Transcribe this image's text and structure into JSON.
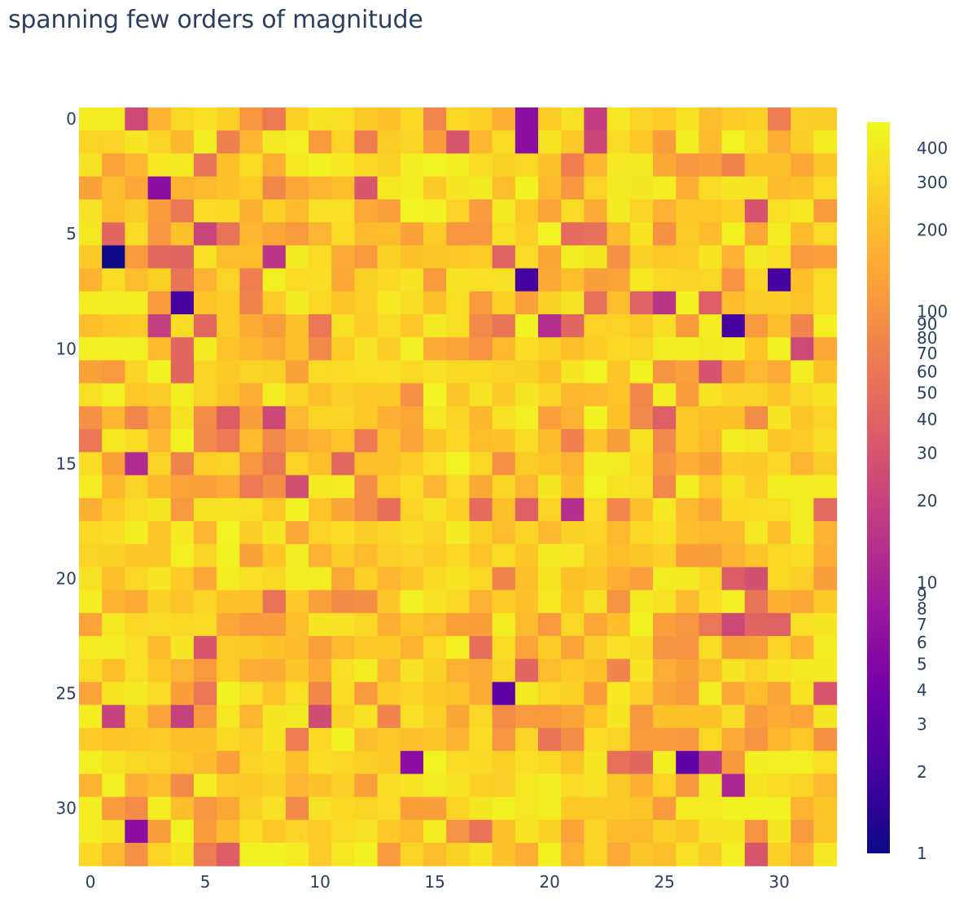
{
  "chart_data": {
    "type": "heatmap",
    "title": "spanning few orders of magnitude",
    "xlabel": "",
    "ylabel": "",
    "x_ticks": [
      "0",
      "5",
      "10",
      "15",
      "20",
      "25",
      "30"
    ],
    "y_ticks": [
      "0",
      "5",
      "10",
      "15",
      "20",
      "25",
      "30"
    ],
    "xlim": [
      -0.5,
      32.5
    ],
    "ylim": [
      32.5,
      -0.5
    ],
    "colorscale": "plasma",
    "colorscale_stops": [
      "#0d0887",
      "#46039f",
      "#7201a8",
      "#9c179e",
      "#bd3786",
      "#d8576b",
      "#ed7953",
      "#fb9f3a",
      "#fdca26",
      "#f0f921"
    ],
    "color_axis": {
      "scale": "log",
      "range": [
        1,
        500
      ],
      "tick_labels": [
        "1",
        "2",
        "3",
        "4",
        "5",
        "6",
        "7",
        "8",
        "9",
        "10",
        "20",
        "30",
        "40",
        "50",
        "60",
        "70",
        "80",
        "90",
        "100",
        "200",
        "300",
        "400"
      ]
    },
    "rows": 33,
    "cols": 33,
    "z": [
      [
        411,
        422,
        24,
        172,
        303,
        343,
        270,
        107,
        63,
        269,
        360,
        347,
        248,
        221,
        300,
        79,
        303,
        270,
        157,
        6,
        254,
        352,
        18,
        382,
        280,
        251,
        359,
        206,
        251,
        270,
        66,
        265,
        258
      ],
      [
        288,
        282,
        373,
        288,
        192,
        426,
        71,
        178,
        401,
        431,
        116,
        284,
        68,
        259,
        291,
        119,
        30,
        184,
        325,
        6,
        369,
        247,
        22,
        321,
        244,
        119,
        423,
        198,
        460,
        325,
        157,
        263,
        415
      ],
      [
        349,
        134,
        182,
        388,
        397,
        57,
        221,
        325,
        161,
        388,
        450,
        387,
        311,
        274,
        424,
        463,
        420,
        328,
        274,
        304,
        221,
        68,
        185,
        384,
        404,
        148,
        109,
        120,
        77,
        212,
        215,
        143,
        230
      ],
      [
        129,
        205,
        146,
        6,
        176,
        189,
        219,
        251,
        81,
        141,
        182,
        210,
        31,
        390,
        419,
        245,
        370,
        401,
        207,
        449,
        190,
        108,
        284,
        400,
        377,
        419,
        163,
        316,
        373,
        363,
        196,
        218,
        318
      ],
      [
        354,
        210,
        262,
        118,
        61,
        317,
        314,
        164,
        275,
        193,
        341,
        339,
        151,
        126,
        465,
        440,
        284,
        117,
        395,
        239,
        135,
        316,
        152,
        402,
        292,
        167,
        240,
        241,
        265,
        29,
        343,
        388,
        116
      ],
      [
        388,
        42,
        317,
        106,
        221,
        21,
        56,
        183,
        142,
        115,
        178,
        316,
        197,
        202,
        130,
        253,
        104,
        107,
        347,
        267,
        455,
        47,
        52,
        196,
        365,
        98,
        259,
        201,
        437,
        144,
        416,
        201,
        318
      ],
      [
        246,
        1,
        113,
        45,
        42,
        345,
        206,
        210,
        15,
        400,
        317,
        154,
        113,
        275,
        218,
        236,
        243,
        251,
        40,
        323,
        139,
        428,
        377,
        96,
        279,
        244,
        250,
        369,
        167,
        404,
        346,
        112,
        123
      ],
      [
        176,
        332,
        207,
        273,
        58,
        172,
        280,
        68,
        432,
        317,
        338,
        148,
        276,
        314,
        364,
        115,
        367,
        339,
        352,
        2,
        148,
        210,
        121,
        133,
        387,
        300,
        291,
        300,
        101,
        295,
        2,
        213,
        323
      ],
      [
        418,
        418,
        418,
        115,
        2,
        224,
        255,
        76,
        249,
        403,
        305,
        235,
        266,
        392,
        337,
        212,
        348,
        113,
        270,
        126,
        277,
        364,
        52,
        204,
        39,
        15,
        446,
        37,
        199,
        262,
        257,
        226,
        323
      ],
      [
        213,
        239,
        252,
        19,
        316,
        44,
        255,
        155,
        118,
        219,
        59,
        343,
        251,
        322,
        237,
        403,
        342,
        84,
        57,
        451,
        13,
        42,
        283,
        284,
        238,
        336,
        116,
        422,
        2,
        114,
        211,
        76,
        433
      ],
      [
        439,
        439,
        439,
        196,
        43,
        401,
        224,
        185,
        149,
        214,
        84,
        250,
        364,
        262,
        440,
        154,
        131,
        100,
        192,
        333,
        276,
        215,
        256,
        314,
        292,
        425,
        425,
        395,
        418,
        233,
        445,
        24,
        146
      ],
      [
        129,
        110,
        281,
        451,
        43,
        286,
        248,
        285,
        273,
        130,
        321,
        317,
        341,
        340,
        299,
        353,
        309,
        308,
        282,
        279,
        221,
        371,
        466,
        233,
        436,
        103,
        127,
        29,
        128,
        188,
        150,
        427,
        221
      ],
      [
        348,
        430,
        244,
        258,
        420,
        288,
        227,
        160,
        405,
        287,
        215,
        268,
        244,
        247,
        96,
        455,
        227,
        361,
        246,
        370,
        293,
        186,
        192,
        225,
        80,
        417,
        120,
        357,
        294,
        291,
        226,
        305,
        365
      ],
      [
        96,
        181,
        78,
        150,
        355,
        87,
        36,
        121,
        23,
        188,
        289,
        294,
        247,
        163,
        144,
        382,
        296,
        186,
        359,
        430,
        123,
        171,
        442,
        217,
        82,
        37,
        241,
        214,
        222,
        89,
        366,
        233,
        286
      ],
      [
        61,
        389,
        327,
        182,
        447,
        82,
        62,
        199,
        82,
        136,
        176,
        224,
        64,
        213,
        134,
        234,
        297,
        209,
        219,
        323,
        194,
        72,
        231,
        121,
        364,
        82,
        242,
        193,
        420,
        386,
        232,
        257,
        336
      ],
      [
        329,
        128,
        12,
        281,
        74,
        265,
        292,
        106,
        61,
        280,
        210,
        45,
        212,
        217,
        254,
        334,
        464,
        299,
        98,
        260,
        227,
        171,
        424,
        407,
        312,
        103,
        160,
        129,
        252,
        246,
        301,
        179,
        261
      ],
      [
        405,
        185,
        282,
        184,
        135,
        127,
        155,
        63,
        92,
        27,
        398,
        406,
        90,
        249,
        330,
        183,
        315,
        148,
        294,
        179,
        380,
        210,
        464,
        362,
        347,
        82,
        426,
        237,
        358,
        257,
        425,
        419,
        405
      ],
      [
        164,
        249,
        327,
        377,
        110,
        361,
        364,
        343,
        238,
        445,
        225,
        138,
        88,
        51,
        283,
        357,
        269,
        48,
        215,
        38,
        287,
        13,
        317,
        78,
        211,
        396,
        189,
        146,
        314,
        320,
        342,
        415,
        46
      ],
      [
        301,
        331,
        418,
        230,
        389,
        179,
        456,
        261,
        380,
        140,
        280,
        329,
        263,
        295,
        338,
        285,
        395,
        274,
        205,
        286,
        192,
        277,
        284,
        191,
        305,
        342,
        211,
        191,
        193,
        386,
        212,
        428,
        172
      ],
      [
        280,
        276,
        231,
        235,
        434,
        294,
        450,
        129,
        231,
        414,
        171,
        257,
        200,
        264,
        283,
        249,
        309,
        224,
        321,
        233,
        401,
        384,
        261,
        209,
        235,
        265,
        124,
        121,
        174,
        227,
        301,
        331,
        162
      ],
      [
        354,
        212,
        304,
        363,
        252,
        141,
        422,
        341,
        303,
        416,
        426,
        141,
        278,
        182,
        228,
        319,
        368,
        301,
        76,
        210,
        369,
        218,
        228,
        159,
        123,
        415,
        393,
        312,
        35,
        28,
        309,
        267,
        121
      ],
      [
        422,
        177,
        156,
        278,
        223,
        290,
        216,
        214,
        56,
        238,
        125,
        86,
        92,
        235,
        440,
        359,
        306,
        168,
        256,
        217,
        390,
        231,
        349,
        102,
        402,
        355,
        193,
        333,
        430,
        56,
        165,
        144,
        248
      ],
      [
        131,
        391,
        299,
        320,
        308,
        317,
        140,
        116,
        117,
        210,
        368,
        353,
        299,
        161,
        227,
        187,
        128,
        124,
        416,
        197,
        110,
        308,
        140,
        209,
        443,
        123,
        105,
        59,
        23,
        41,
        39,
        344,
        374
      ],
      [
        408,
        413,
        347,
        194,
        374,
        31,
        251,
        245,
        220,
        196,
        125,
        191,
        242,
        247,
        177,
        298,
        431,
        50,
        325,
        132,
        251,
        135,
        263,
        339,
        319,
        102,
        101,
        325,
        122,
        125,
        294,
        167,
        415
      ],
      [
        328,
        212,
        339,
        242,
        178,
        113,
        254,
        161,
        155,
        233,
        153,
        344,
        411,
        181,
        350,
        279,
        171,
        152,
        289,
        43,
        204,
        252,
        218,
        77,
        360,
        157,
        129,
        206,
        371,
        283,
        355,
        394,
        400
      ],
      [
        134,
        369,
        395,
        318,
        124,
        59,
        442,
        342,
        225,
        348,
        80,
        326,
        112,
        252,
        283,
        237,
        223,
        155,
        3,
        402,
        299,
        276,
        120,
        392,
        264,
        134,
        116,
        415,
        143,
        207,
        137,
        356,
        30
      ],
      [
        422,
        20,
        277,
        133,
        20,
        112,
        392,
        180,
        375,
        404,
        25,
        275,
        359,
        74,
        347,
        275,
        138,
        298,
        89,
        112,
        113,
        133,
        225,
        373,
        111,
        221,
        217,
        218,
        336,
        120,
        156,
        135,
        373
      ],
      [
        252,
        223,
        242,
        251,
        213,
        219,
        305,
        265,
        369,
        65,
        297,
        436,
        204,
        239,
        214,
        228,
        170,
        330,
        104,
        282,
        58,
        91,
        330,
        281,
        115,
        116,
        108,
        309,
        149,
        103,
        186,
        241,
        98
      ],
      [
        431,
        367,
        305,
        287,
        244,
        197,
        123,
        291,
        314,
        215,
        333,
        301,
        268,
        245,
        6,
        461,
        317,
        313,
        271,
        341,
        310,
        224,
        375,
        52,
        43,
        423,
        3,
        16,
        111,
        423,
        434,
        434,
        342
      ],
      [
        175,
        440,
        163,
        202,
        85,
        406,
        254,
        242,
        279,
        178,
        219,
        264,
        125,
        337,
        356,
        412,
        365,
        271,
        264,
        387,
        419,
        317,
        352,
        245,
        166,
        281,
        111,
        395,
        11,
        367,
        316,
        290,
        190
      ],
      [
        418,
        117,
        87,
        417,
        208,
        109,
        144,
        273,
        353,
        82,
        352,
        299,
        292,
        317,
        124,
        121,
        285,
        381,
        447,
        383,
        411,
        247,
        247,
        248,
        229,
        114,
        406,
        406,
        454,
        445,
        445,
        175,
        236
      ],
      [
        411,
        362,
        6,
        122,
        450,
        120,
        195,
        325,
        241,
        280,
        256,
        315,
        358,
        239,
        201,
        405,
        99,
        56,
        216,
        357,
        276,
        134,
        284,
        198,
        189,
        272,
        232,
        363,
        372,
        100,
        377,
        112,
        226
      ],
      [
        313,
        187,
        95,
        281,
        367,
        66,
        36,
        449,
        450,
        407,
        250,
        389,
        452,
        114,
        291,
        206,
        272,
        368,
        221,
        158,
        436,
        169,
        293,
        149,
        226,
        209,
        344,
        262,
        434,
        31,
        270,
        171,
        382
      ]
    ]
  }
}
